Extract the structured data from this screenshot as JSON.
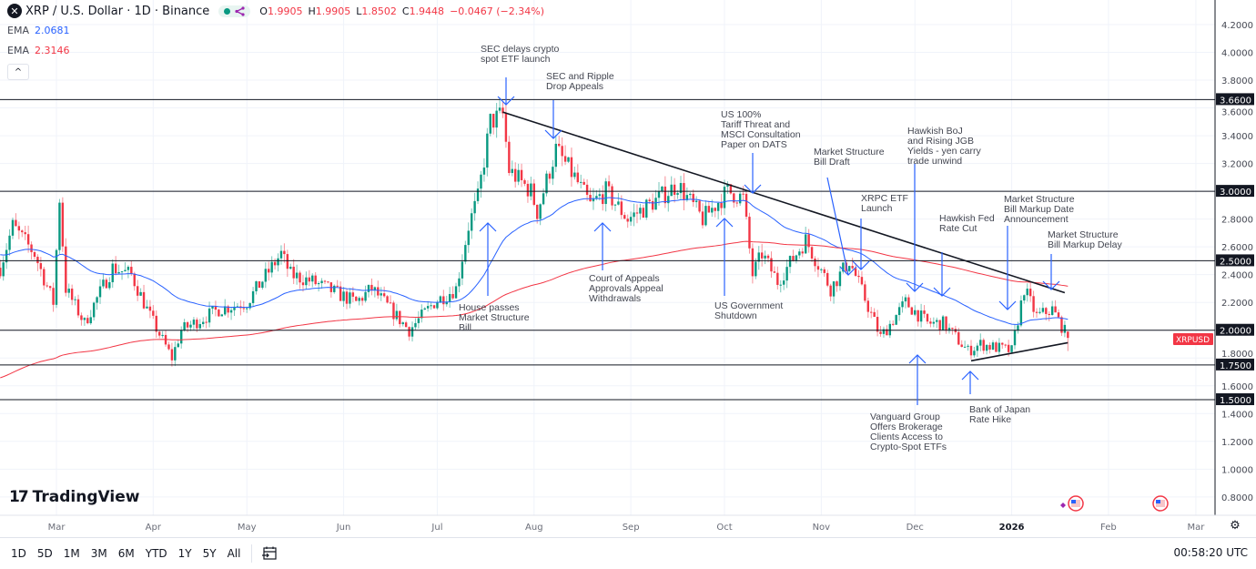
{
  "header": {
    "logo_glyph": "✕",
    "title": "XRP / U.S. Dollar · 1D · Binance",
    "ohlc": {
      "o_label": "O",
      "o": "1.9905",
      "h_label": "H",
      "h": "1.9905",
      "l_label": "L",
      "l": "1.8502",
      "c_label": "C",
      "c": "1.9448",
      "change": "−0.0467 (−2.34%)"
    },
    "indicators": [
      {
        "label": "EMA",
        "value": "2.0681",
        "color": "#2962ff"
      },
      {
        "label": "EMA",
        "value": "2.3146",
        "color": "#f23645"
      }
    ],
    "collapse_glyph": "^"
  },
  "branding": {
    "logo_mark": "17",
    "logo_text": "TradingView"
  },
  "colors": {
    "up": "#089981",
    "down": "#f23645",
    "ema_fast": "#2962ff",
    "ema_slow": "#f23645",
    "annotation_arrow": "#2962ff",
    "level_line": "#131722"
  },
  "chart_data": {
    "type": "candlestick",
    "symbol": "XRPUSD",
    "interval": "1D",
    "ylim": [
      0.7,
      4.3
    ],
    "y_ticks": [
      "4.2000",
      "4.0000",
      "3.8000",
      "3.6000",
      "3.4000",
      "3.2000",
      "3.0000",
      "2.8000",
      "2.6000",
      "2.4000",
      "2.2000",
      "2.0000",
      "1.8000",
      "1.6000",
      "1.4000",
      "1.2000",
      "1.0000",
      "0.8000"
    ],
    "x_ticks": [
      {
        "label": "Mar",
        "date": "2025-03-01"
      },
      {
        "label": "Apr",
        "date": "2025-04-01"
      },
      {
        "label": "May",
        "date": "2025-05-01"
      },
      {
        "label": "Jun",
        "date": "2025-06-01"
      },
      {
        "label": "Jul",
        "date": "2025-07-01"
      },
      {
        "label": "Aug",
        "date": "2025-08-01"
      },
      {
        "label": "Sep",
        "date": "2025-09-01"
      },
      {
        "label": "Oct",
        "date": "2025-10-01"
      },
      {
        "label": "Nov",
        "date": "2025-11-01"
      },
      {
        "label": "Dec",
        "date": "2025-12-01"
      },
      {
        "label": "2026",
        "date": "2026-01-01"
      },
      {
        "label": "Feb",
        "date": "2026-02-01"
      },
      {
        "label": "Mar",
        "date": "2026-03-01"
      }
    ],
    "close_path": [
      [
        "2025-02-11",
        2.45
      ],
      [
        "2025-02-15",
        2.75
      ],
      [
        "2025-02-22",
        2.55
      ],
      [
        "2025-02-28",
        2.2
      ],
      [
        "2025-03-02",
        2.95
      ],
      [
        "2025-03-04",
        2.3
      ],
      [
        "2025-03-10",
        2.05
      ],
      [
        "2025-03-19",
        2.45
      ],
      [
        "2025-03-25",
        2.4
      ],
      [
        "2025-03-31",
        2.1
      ],
      [
        "2025-04-07",
        1.8
      ],
      [
        "2025-04-10",
        2.0
      ],
      [
        "2025-04-22",
        2.15
      ],
      [
        "2025-05-01",
        2.2
      ],
      [
        "2025-05-12",
        2.55
      ],
      [
        "2025-05-15",
        2.4
      ],
      [
        "2025-05-22",
        2.35
      ],
      [
        "2025-06-05",
        2.2
      ],
      [
        "2025-06-10",
        2.3
      ],
      [
        "2025-06-22",
        2.0
      ],
      [
        "2025-06-30",
        2.2
      ],
      [
        "2025-07-07",
        2.3
      ],
      [
        "2025-07-11",
        2.75
      ],
      [
        "2025-07-14",
        2.95
      ],
      [
        "2025-07-18",
        3.5
      ],
      [
        "2025-07-22",
        3.55
      ],
      [
        "2025-07-24",
        3.15
      ],
      [
        "2025-07-31",
        3.0
      ],
      [
        "2025-08-02",
        2.85
      ],
      [
        "2025-08-08",
        3.3
      ],
      [
        "2025-08-14",
        3.1
      ],
      [
        "2025-08-19",
        2.9
      ],
      [
        "2025-08-24",
        3.0
      ],
      [
        "2025-08-31",
        2.8
      ],
      [
        "2025-09-10",
        2.95
      ],
      [
        "2025-09-16",
        3.05
      ],
      [
        "2025-09-24",
        2.8
      ],
      [
        "2025-10-02",
        3.0
      ],
      [
        "2025-10-07",
        2.95
      ],
      [
        "2025-10-10",
        2.4
      ],
      [
        "2025-10-13",
        2.55
      ],
      [
        "2025-10-18",
        2.35
      ],
      [
        "2025-10-27",
        2.65
      ],
      [
        "2025-11-04",
        2.3
      ],
      [
        "2025-11-10",
        2.5
      ],
      [
        "2025-11-20",
        1.95
      ],
      [
        "2025-11-28",
        2.2
      ],
      [
        "2025-12-05",
        2.05
      ],
      [
        "2025-12-10",
        2.05
      ],
      [
        "2025-12-18",
        1.85
      ],
      [
        "2025-12-22",
        1.9
      ],
      [
        "2026-01-01",
        1.85
      ],
      [
        "2026-01-05",
        2.3
      ],
      [
        "2026-01-09",
        2.1
      ],
      [
        "2026-01-14",
        2.15
      ],
      [
        "2026-01-18",
        1.99
      ],
      [
        "2026-01-19",
        1.9448
      ]
    ],
    "last_price_label": "XRPUSD",
    "ema_values": {
      "fast": 2.0681,
      "slow": 2.3146
    },
    "horizontal_levels": [
      {
        "price": 3.66,
        "label": "3.6600"
      },
      {
        "price": 3.0,
        "label": "3.0000"
      },
      {
        "price": 2.5,
        "label": "2.5000"
      },
      {
        "price": 2.0,
        "label": "2.0000"
      },
      {
        "price": 1.75,
        "label": "1.7500"
      },
      {
        "price": 1.5,
        "label": "1.5000"
      }
    ],
    "trendlines": [
      {
        "from": [
          "2025-07-22",
          3.57
        ],
        "to": [
          "2026-01-18",
          2.27
        ]
      },
      {
        "from": [
          "2025-12-19",
          1.78
        ],
        "to": [
          "2026-01-19",
          1.91
        ]
      }
    ],
    "annotations": [
      {
        "lines": [
          "SEC delays crypto",
          "spot ETF launch"
        ],
        "direction": "down"
      },
      {
        "lines": [
          "SEC and Ripple",
          "Drop Appeals"
        ],
        "direction": "down"
      },
      {
        "lines": [
          "US 100%",
          "Tariff Threat and",
          "MSCI Consultation",
          "Paper on DATS"
        ],
        "direction": "down"
      },
      {
        "lines": [
          "Market Structure",
          "Bill Draft"
        ],
        "direction": "down"
      },
      {
        "lines": [
          "XRPC ETF",
          "Launch"
        ],
        "direction": "down"
      },
      {
        "lines": [
          "Hawkish BoJ",
          "and Rising JGB",
          "Yields - yen carry",
          "trade unwind"
        ],
        "direction": "down"
      },
      {
        "lines": [
          "Hawkish Fed",
          "Rate Cut"
        ],
        "direction": "down"
      },
      {
        "lines": [
          "Market Structure",
          "Bill Markup Date",
          "Announcement"
        ],
        "direction": "down"
      },
      {
        "lines": [
          "Market Structure",
          "Bill Markup Delay"
        ],
        "direction": "down"
      },
      {
        "lines": [
          "House passes",
          "Market Structure",
          "Bill"
        ],
        "direction": "up"
      },
      {
        "lines": [
          "Court of Appeals",
          "Approvals Appeal",
          "Withdrawals"
        ],
        "direction": "up"
      },
      {
        "lines": [
          "US Government",
          "Shutdown"
        ],
        "direction": "up"
      },
      {
        "lines": [
          "Vanguard Group",
          "Offers Brokerage",
          "Clients Access to",
          "Crypto-Spot ETFs"
        ],
        "direction": "up"
      },
      {
        "lines": [
          "Bank of Japan",
          "Rate Hike"
        ],
        "direction": "up"
      }
    ]
  },
  "time_ranges": [
    "1D",
    "5D",
    "1M",
    "3M",
    "6M",
    "YTD",
    "1Y",
    "5Y",
    "All"
  ],
  "footer": {
    "clock": "00:58:20 UTC",
    "date_range_icon": "calendar-goto-icon",
    "settings_icon": "gear-icon"
  }
}
